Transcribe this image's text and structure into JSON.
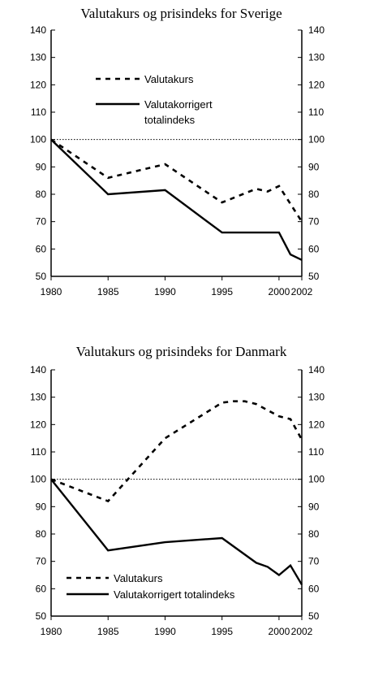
{
  "chart_data": [
    {
      "type": "line",
      "title": "Valutakurs og prisindeks for Sverige",
      "xlabel": "",
      "ylabel": "",
      "xlim": [
        1980,
        2002
      ],
      "ylim": [
        50,
        140
      ],
      "x_ticks": [
        1980,
        1985,
        1990,
        1995,
        2000,
        2002
      ],
      "x_tick_labels": [
        "1980",
        "1985",
        "1990",
        "1995",
        "2000",
        "2002"
      ],
      "y_ticks": [
        50,
        60,
        70,
        80,
        90,
        100,
        110,
        120,
        130,
        140
      ],
      "y_tick_labels": [
        "50",
        "60",
        "70",
        "80",
        "90",
        "100",
        "110",
        "120",
        "130",
        "140"
      ],
      "right_axis_ticks": true,
      "reference_line": 100,
      "legend_position": "upper-left",
      "grid": false,
      "series": [
        {
          "name": "Valutakurs",
          "style": "dashed",
          "x": [
            1980,
            1985,
            1990,
            1995,
            1998,
            1999,
            2000,
            2002
          ],
          "values": [
            100,
            86,
            91,
            77,
            82,
            81,
            83,
            70
          ]
        },
        {
          "name": "Valutakorrigert totalindeks",
          "legend_lines": [
            "Valutakorrigert",
            "totalindeks"
          ],
          "style": "solid",
          "x": [
            1980,
            1985,
            1990,
            1995,
            2000,
            2001,
            2002
          ],
          "values": [
            100,
            80,
            81.5,
            66,
            66,
            58,
            56
          ]
        }
      ]
    },
    {
      "type": "line",
      "title": "Valutakurs og prisindeks for Danmark",
      "xlabel": "",
      "ylabel": "",
      "xlim": [
        1980,
        2002
      ],
      "ylim": [
        50,
        140
      ],
      "x_ticks": [
        1980,
        1985,
        1990,
        1995,
        2000,
        2002
      ],
      "x_tick_labels": [
        "1980",
        "1985",
        "1990",
        "1995",
        "2000",
        "2002"
      ],
      "y_ticks": [
        50,
        60,
        70,
        80,
        90,
        100,
        110,
        120,
        130,
        140
      ],
      "y_tick_labels": [
        "50",
        "60",
        "70",
        "80",
        "90",
        "100",
        "110",
        "120",
        "130",
        "140"
      ],
      "right_axis_ticks": true,
      "reference_line": 100,
      "legend_position": "lower-left",
      "grid": false,
      "series": [
        {
          "name": "Valutakurs",
          "style": "dashed",
          "x": [
            1980,
            1985,
            1990,
            1995,
            1996,
            1997,
            1998,
            2000,
            2001,
            2002
          ],
          "values": [
            100,
            92,
            115,
            128,
            128.5,
            128.5,
            127.5,
            123,
            122,
            114.5
          ]
        },
        {
          "name": "Valutakorrigert totalindeks",
          "legend_lines": [
            "Valutakorrigert totalindeks"
          ],
          "style": "solid",
          "x": [
            1980,
            1985,
            1990,
            1995,
            1998,
            1999,
            2000,
            2001,
            2002
          ],
          "values": [
            100,
            74,
            77,
            78.5,
            69.5,
            68,
            65,
            68.5,
            61.5
          ]
        }
      ]
    }
  ]
}
